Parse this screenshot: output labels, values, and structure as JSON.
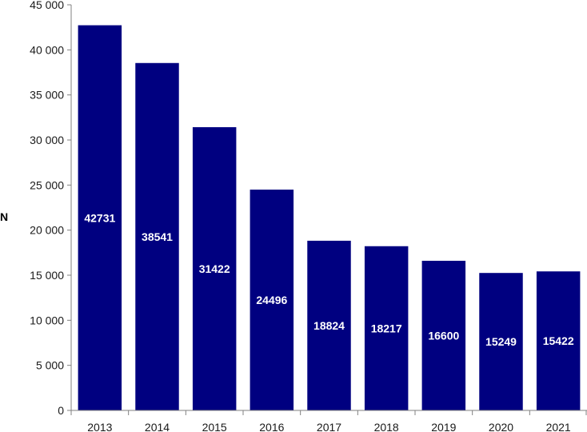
{
  "chart_data": {
    "type": "bar",
    "categories": [
      "2013",
      "2014",
      "2015",
      "2016",
      "2017",
      "2018",
      "2019",
      "2020",
      "2021"
    ],
    "values": [
      42731,
      38541,
      31422,
      24496,
      18824,
      18217,
      16600,
      15249,
      15422
    ],
    "data_labels": [
      "42731",
      "38541",
      "31422",
      "24496",
      "18824",
      "18217",
      "16600",
      "15249",
      "15422"
    ],
    "title": "",
    "xlabel": "",
    "ylabel": "N",
    "ylim": [
      0,
      45000
    ],
    "yticks": [
      0,
      5000,
      10000,
      15000,
      20000,
      25000,
      30000,
      35000,
      40000,
      45000
    ],
    "ytick_labels": [
      "0",
      "5 000",
      "10 000",
      "15 000",
      "20 000",
      "25 000",
      "30 000",
      "35 000",
      "40 000",
      "45 000"
    ],
    "grid": false,
    "legend": "none",
    "bar_color": "#000080",
    "data_label_color": "#ffffff",
    "axis_color": "#808080"
  }
}
